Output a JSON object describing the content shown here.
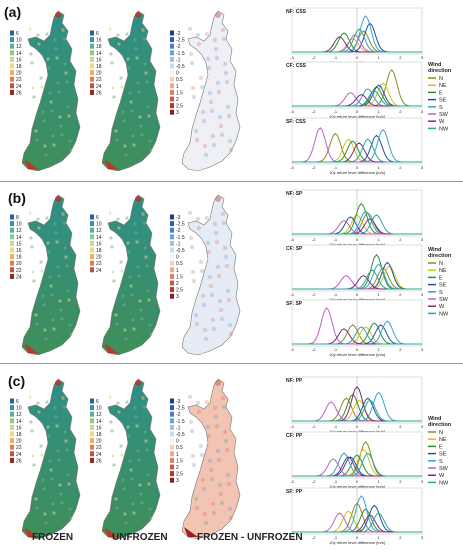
{
  "panels": [
    {
      "label": "(a)",
      "legends": [
        [
          "6",
          "10",
          "12",
          "14",
          "16",
          "18",
          "20",
          "22",
          "24",
          "26"
        ],
        [
          "6",
          "16",
          "18",
          "14",
          "16",
          "18",
          "20",
          "22",
          "24",
          "26"
        ],
        [
          "-2",
          "-2.5",
          "-2",
          "-1.5",
          "-1",
          "-0.5",
          "0",
          "0.5",
          "1",
          "1.5",
          "2",
          "2.5",
          "3"
        ]
      ],
      "plots": [
        {
          "title": "NF: CSS",
          "xlabel": "10y return level difference [m/s]"
        },
        {
          "title": "CF: CSS",
          "xlabel": "10y return level difference [m/s]"
        },
        {
          "title": "SF: CSS",
          "xlabel": "10y return level difference [m/s]"
        }
      ],
      "legend_title": "Wind direction",
      "legend_entries": [
        "N",
        "NE",
        "E",
        "SE",
        "S",
        "SW",
        "W",
        "NW"
      ]
    },
    {
      "label": "(b)",
      "legends": [
        [
          "8",
          "10",
          "12",
          "14",
          "15",
          "16",
          "18",
          "20",
          "22",
          "24"
        ],
        [
          "6",
          "10",
          "12",
          "14",
          "16",
          "18",
          "20",
          "22",
          "24"
        ],
        [
          "-3",
          "-2.5",
          "-2",
          "-1.5",
          "-1",
          "-0.5",
          "0",
          "0.5",
          "1",
          "1.5",
          "2",
          "2.5",
          "3"
        ]
      ],
      "plots": [
        {
          "title": "NF: SP",
          "xlabel": "10y return level difference [m/s]"
        },
        {
          "title": "CF: SP",
          "xlabel": "10y return level difference [m/s]"
        },
        {
          "title": "SF: SP",
          "xlabel": "10y return level difference [m/s]"
        }
      ],
      "legend_title": "Wind direction",
      "legend_entries": [
        "N",
        "NE",
        "E",
        "SE",
        "S",
        "SW",
        "W",
        "NW"
      ]
    },
    {
      "label": "(c)",
      "legends": [
        [
          "6",
          "10",
          "12",
          "14",
          "16",
          "18",
          "20",
          "22",
          "24",
          "26"
        ],
        [
          "6",
          "10",
          "12",
          "14",
          "16",
          "18",
          "20",
          "22",
          "24",
          "26"
        ],
        [
          "-3",
          "-2.5",
          "-2",
          "-1.5",
          "-1",
          "-0.5",
          "0",
          "0.5",
          "1",
          "1.5",
          "2",
          "2.5",
          "3"
        ]
      ],
      "plots": [
        {
          "title": "NF: PP",
          "xlabel": "10y return level difference [m/s]"
        },
        {
          "title": "CF: PP",
          "xlabel": "10y return level difference [m/s]"
        },
        {
          "title": "SF: PP",
          "xlabel": "10y return level difference [m/s]"
        }
      ],
      "legend_title": "Wind direction",
      "legend_entries": [
        "N",
        "NE",
        "E",
        "SE",
        "S",
        "SW",
        "W",
        "NW"
      ]
    }
  ],
  "xticks": [
    "-3",
    "-2",
    "-1",
    "0",
    "1",
    "2",
    "3"
  ],
  "bottom_labels": {
    "frozen": "FROZEN",
    "unfrozen": "UNFROZEN",
    "diff": "FROZEN - UNFROZEN"
  },
  "colors": {
    "N": "#8a8a1e",
    "NE": "#d4c21a",
    "E": "#2f8e2f",
    "SE": "#1f4fa0",
    "S": "#3aa0d8",
    "SW": "#c060c8",
    "W": "#7b2b7a",
    "NW": "#2aa59a",
    "map_green": "#3f8f5a",
    "map_teal": "#2f8f88",
    "map_yellow": "#d9d87a",
    "map_red": "#b53a2a",
    "diff_blue": "#4a7fc0",
    "diff_red": "#d0584a"
  },
  "chart_data": [
    {
      "type": "line",
      "title": "NF: CSS",
      "xlabel": "10y return level difference [m/s]",
      "xlim": [
        -3,
        3
      ],
      "series": [
        {
          "name": "N",
          "peak": 0.3,
          "h": 0.55
        },
        {
          "name": "NE",
          "peak": -0.2,
          "h": 0.35
        },
        {
          "name": "E",
          "peak": -0.6,
          "h": 0.5
        },
        {
          "name": "SE",
          "peak": 0.6,
          "h": 0.75
        },
        {
          "name": "S",
          "peak": 0.4,
          "h": 0.95
        },
        {
          "name": "SW",
          "peak": -0.1,
          "h": 0.45
        },
        {
          "name": "W",
          "peak": -0.8,
          "h": 0.4
        },
        {
          "name": "NW",
          "peak": 0.1,
          "h": 0.6
        }
      ]
    },
    {
      "type": "line",
      "title": "CF: CSS",
      "xlabel": "10y return level difference [m/s]",
      "xlim": [
        -3,
        3
      ],
      "series": [
        {
          "name": "N",
          "peak": 1.6,
          "h": 0.95
        },
        {
          "name": "NE",
          "peak": 1.2,
          "h": 0.6
        },
        {
          "name": "E",
          "peak": 0.9,
          "h": 0.5
        },
        {
          "name": "SE",
          "peak": 1.0,
          "h": 0.55
        },
        {
          "name": "S",
          "peak": 0.5,
          "h": 0.45
        },
        {
          "name": "SW",
          "peak": -0.3,
          "h": 0.35
        },
        {
          "name": "W",
          "peak": 0.2,
          "h": 0.3
        },
        {
          "name": "NW",
          "peak": 0.8,
          "h": 0.4
        }
      ]
    },
    {
      "type": "line",
      "title": "SF: CSS",
      "xlabel": "10y return level difference [m/s]",
      "xlim": [
        -3,
        3
      ],
      "series": [
        {
          "name": "N",
          "peak": -1.0,
          "h": 0.75
        },
        {
          "name": "NE",
          "peak": -0.4,
          "h": 0.6
        },
        {
          "name": "E",
          "peak": -0.2,
          "h": 0.55
        },
        {
          "name": "SE",
          "peak": 0.9,
          "h": 0.7
        },
        {
          "name": "S",
          "peak": 1.2,
          "h": 0.85
        },
        {
          "name": "SW",
          "peak": -1.7,
          "h": 0.9
        },
        {
          "name": "W",
          "peak": 0.1,
          "h": 0.5
        },
        {
          "name": "NW",
          "peak": 0.5,
          "h": 0.6
        }
      ]
    },
    {
      "type": "line",
      "title": "NF: SP",
      "xlabel": "10y return level difference [m/s]",
      "xlim": [
        -3,
        3
      ],
      "series": [
        {
          "name": "N",
          "peak": 0.5,
          "h": 0.55
        },
        {
          "name": "NE",
          "peak": 0.0,
          "h": 0.5
        },
        {
          "name": "E",
          "peak": 0.2,
          "h": 0.8
        },
        {
          "name": "SE",
          "peak": -0.3,
          "h": 0.45
        },
        {
          "name": "S",
          "peak": 0.4,
          "h": 0.6
        },
        {
          "name": "SW",
          "peak": -0.6,
          "h": 0.35
        },
        {
          "name": "W",
          "peak": 0.6,
          "h": 0.4
        },
        {
          "name": "NW",
          "peak": 0.9,
          "h": 0.5
        }
      ]
    },
    {
      "type": "line",
      "title": "CF: SP",
      "xlabel": "10y return level difference [m/s]",
      "xlim": [
        -3,
        3
      ],
      "series": [
        {
          "name": "N",
          "peak": 1.2,
          "h": 0.55
        },
        {
          "name": "NE",
          "peak": 1.5,
          "h": 0.6
        },
        {
          "name": "E",
          "peak": 0.9,
          "h": 0.9
        },
        {
          "name": "SE",
          "peak": 1.4,
          "h": 0.7
        },
        {
          "name": "S",
          "peak": 1.0,
          "h": 0.65
        },
        {
          "name": "SW",
          "peak": -0.5,
          "h": 0.35
        },
        {
          "name": "W",
          "peak": 0.3,
          "h": 0.35
        },
        {
          "name": "NW",
          "peak": 0.7,
          "h": 0.5
        }
      ]
    },
    {
      "type": "line",
      "title": "SF: SP",
      "xlabel": "10y return level difference [m/s]",
      "xlim": [
        -3,
        3
      ],
      "series": [
        {
          "name": "N",
          "peak": -0.2,
          "h": 0.5
        },
        {
          "name": "NE",
          "peak": 0.4,
          "h": 0.45
        },
        {
          "name": "E",
          "peak": 0.8,
          "h": 0.55
        },
        {
          "name": "SE",
          "peak": 1.1,
          "h": 0.5
        },
        {
          "name": "S",
          "peak": 1.4,
          "h": 0.6
        },
        {
          "name": "SW",
          "peak": -1.4,
          "h": 0.95
        },
        {
          "name": "W",
          "peak": -0.6,
          "h": 0.4
        },
        {
          "name": "NW",
          "peak": 0.2,
          "h": 0.45
        }
      ]
    },
    {
      "type": "line",
      "title": "NF: PP",
      "xlabel": "10y return level difference [m/s]",
      "xlim": [
        -3,
        3
      ],
      "series": [
        {
          "name": "N",
          "peak": -0.5,
          "h": 0.6
        },
        {
          "name": "NE",
          "peak": 0.1,
          "h": 0.55
        },
        {
          "name": "E",
          "peak": -0.2,
          "h": 0.7
        },
        {
          "name": "SE",
          "peak": 0.5,
          "h": 0.6
        },
        {
          "name": "S",
          "peak": 1.0,
          "h": 0.75
        },
        {
          "name": "SW",
          "peak": -1.2,
          "h": 0.5
        },
        {
          "name": "W",
          "peak": 0.0,
          "h": 0.9
        },
        {
          "name": "NW",
          "peak": 0.6,
          "h": 0.55
        }
      ]
    },
    {
      "type": "line",
      "title": "CF: PP",
      "xlabel": "10y return level difference [m/s]",
      "xlim": [
        -3,
        3
      ],
      "series": [
        {
          "name": "N",
          "peak": 0.4,
          "h": 0.9
        },
        {
          "name": "NE",
          "peak": 0.3,
          "h": 0.7
        },
        {
          "name": "E",
          "peak": 0.0,
          "h": 0.55
        },
        {
          "name": "SE",
          "peak": -0.3,
          "h": 0.5
        },
        {
          "name": "S",
          "peak": -0.6,
          "h": 0.6
        },
        {
          "name": "SW",
          "peak": -1.1,
          "h": 0.45
        },
        {
          "name": "W",
          "peak": -0.4,
          "h": 0.5
        },
        {
          "name": "NW",
          "peak": 0.5,
          "h": 0.6
        }
      ]
    },
    {
      "type": "line",
      "title": "SF: PP",
      "xlabel": "10y return level difference [m/s]",
      "xlim": [
        -3,
        3
      ],
      "series": [
        {
          "name": "N",
          "peak": 0.0,
          "h": 0.75
        },
        {
          "name": "NE",
          "peak": -0.4,
          "h": 0.55
        },
        {
          "name": "E",
          "peak": 0.4,
          "h": 0.6
        },
        {
          "name": "SE",
          "peak": 0.8,
          "h": 0.7
        },
        {
          "name": "S",
          "peak": 0.2,
          "h": 0.95
        },
        {
          "name": "SW",
          "peak": -0.8,
          "h": 0.5
        },
        {
          "name": "W",
          "peak": 0.6,
          "h": 0.45
        },
        {
          "name": "NW",
          "peak": 1.0,
          "h": 0.5
        }
      ]
    }
  ]
}
